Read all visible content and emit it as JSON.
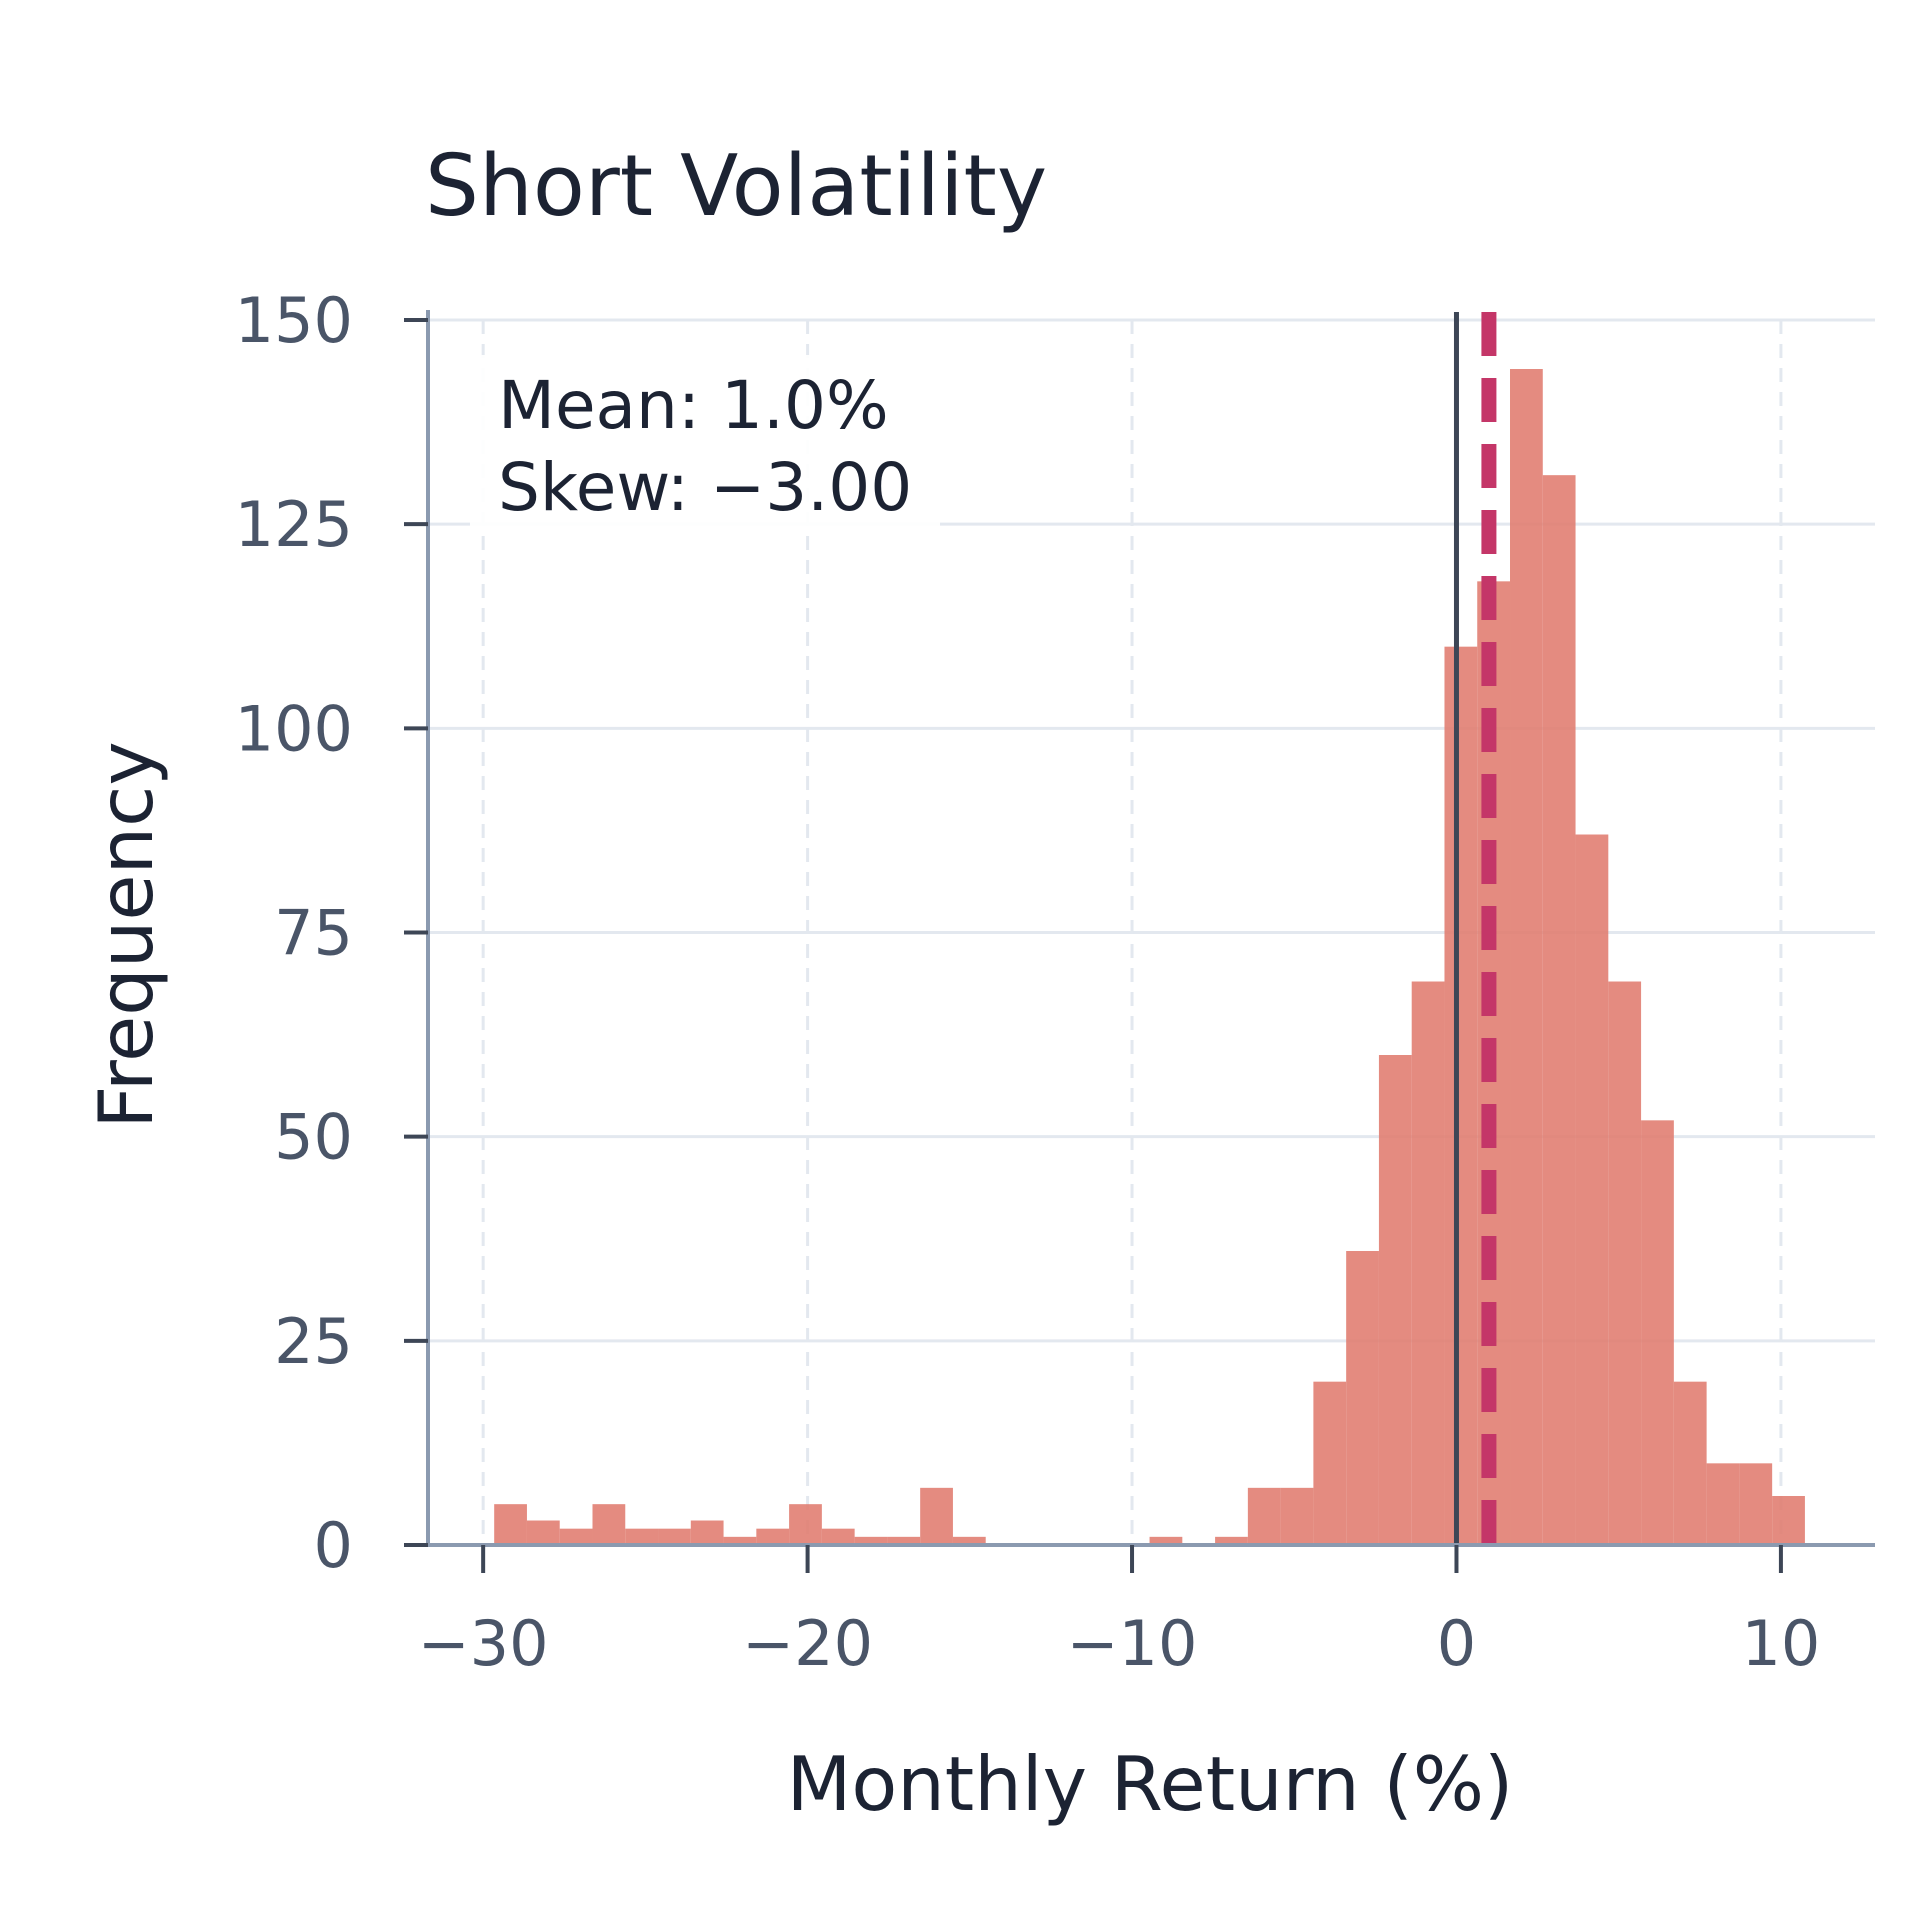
{
  "chart_data": {
    "type": "bar",
    "title": "Short Volatility",
    "xlabel": "Monthly Return (%)",
    "ylabel": "Frequency",
    "xlim": [
      -31.7,
      12.9
    ],
    "ylim": [
      0,
      150
    ],
    "xticks": [
      -30,
      -20,
      -10,
      0,
      10
    ],
    "xtick_labels": [
      "−30",
      "−20",
      "−10",
      "0",
      "10"
    ],
    "yticks": [
      0,
      25,
      50,
      75,
      100,
      125,
      150
    ],
    "ytick_labels": [
      "0",
      "25",
      "50",
      "75",
      "100",
      "125",
      "150"
    ],
    "grid": true,
    "bar_color": "#e07b6e",
    "bins": [
      {
        "x0": -29.66,
        "x1": -28.65,
        "count": 5
      },
      {
        "x0": -28.65,
        "x1": -27.64,
        "count": 3
      },
      {
        "x0": -27.64,
        "x1": -26.63,
        "count": 2
      },
      {
        "x0": -26.63,
        "x1": -25.62,
        "count": 5
      },
      {
        "x0": -25.62,
        "x1": -24.61,
        "count": 2
      },
      {
        "x0": -24.61,
        "x1": -23.6,
        "count": 2
      },
      {
        "x0": -23.6,
        "x1": -22.59,
        "count": 3
      },
      {
        "x0": -22.59,
        "x1": -21.58,
        "count": 1
      },
      {
        "x0": -21.58,
        "x1": -20.57,
        "count": 2
      },
      {
        "x0": -20.57,
        "x1": -19.56,
        "count": 5
      },
      {
        "x0": -19.56,
        "x1": -18.55,
        "count": 2
      },
      {
        "x0": -18.55,
        "x1": -17.54,
        "count": 1
      },
      {
        "x0": -17.54,
        "x1": -16.53,
        "count": 1
      },
      {
        "x0": -16.53,
        "x1": -15.52,
        "count": 7
      },
      {
        "x0": -15.52,
        "x1": -14.51,
        "count": 1
      },
      {
        "x0": -14.51,
        "x1": -13.5,
        "count": 0
      },
      {
        "x0": -13.5,
        "x1": -12.49,
        "count": 0
      },
      {
        "x0": -12.49,
        "x1": -11.48,
        "count": 0
      },
      {
        "x0": -11.48,
        "x1": -10.47,
        "count": 0
      },
      {
        "x0": -10.47,
        "x1": -9.46,
        "count": 0
      },
      {
        "x0": -9.46,
        "x1": -8.45,
        "count": 1
      },
      {
        "x0": -8.45,
        "x1": -7.44,
        "count": 0
      },
      {
        "x0": -7.44,
        "x1": -6.43,
        "count": 1
      },
      {
        "x0": -6.43,
        "x1": -5.42,
        "count": 7
      },
      {
        "x0": -5.42,
        "x1": -4.41,
        "count": 7
      },
      {
        "x0": -4.41,
        "x1": -3.4,
        "count": 20
      },
      {
        "x0": -3.4,
        "x1": -2.39,
        "count": 36
      },
      {
        "x0": -2.39,
        "x1": -1.38,
        "count": 60
      },
      {
        "x0": -1.38,
        "x1": -0.37,
        "count": 69
      },
      {
        "x0": -0.37,
        "x1": 0.64,
        "count": 110
      },
      {
        "x0": 0.64,
        "x1": 1.65,
        "count": 118
      },
      {
        "x0": 1.65,
        "x1": 2.66,
        "count": 144
      },
      {
        "x0": 2.66,
        "x1": 3.67,
        "count": 131
      },
      {
        "x0": 3.67,
        "x1": 4.68,
        "count": 87
      },
      {
        "x0": 4.68,
        "x1": 5.69,
        "count": 69
      },
      {
        "x0": 5.69,
        "x1": 6.7,
        "count": 52
      },
      {
        "x0": 6.7,
        "x1": 7.71,
        "count": 20
      },
      {
        "x0": 7.71,
        "x1": 8.72,
        "count": 10
      },
      {
        "x0": 8.72,
        "x1": 9.73,
        "count": 10
      },
      {
        "x0": 9.73,
        "x1": 10.74,
        "count": 6
      }
    ],
    "reference_lines": [
      {
        "x": 0,
        "style": "solid",
        "color": "#3d4656"
      },
      {
        "x": 1.0,
        "style": "dashed",
        "color": "#c43668"
      }
    ],
    "annotation": {
      "lines": [
        "Mean: 1.0%",
        "Skew: −3.00"
      ]
    }
  }
}
